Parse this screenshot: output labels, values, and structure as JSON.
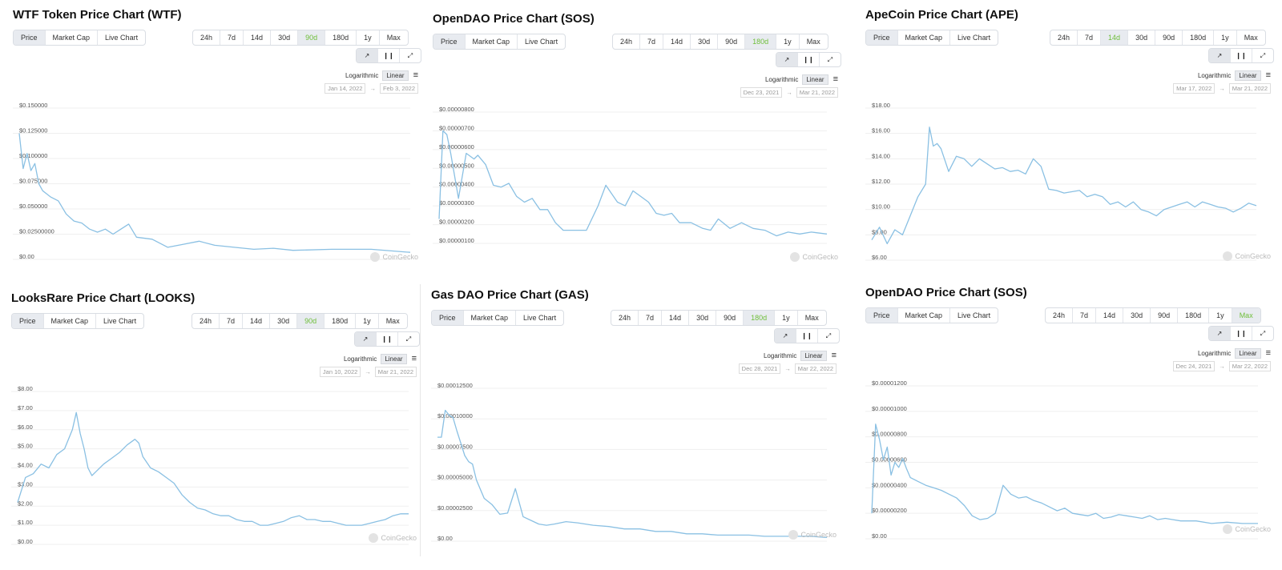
{
  "common": {
    "view_tabs": [
      "Price",
      "Market Cap",
      "Live Chart"
    ],
    "ranges": [
      "24h",
      "7d",
      "14d",
      "30d",
      "90d",
      "180d",
      "1y",
      "Max"
    ],
    "chart_icons": [
      "line-chart-icon",
      "candlestick-icon",
      "fullscreen-icon"
    ],
    "scale_log": "Logarithmic",
    "scale_linear": "Linear",
    "date_arrow": "→",
    "watermark": "CoinGecko",
    "line_color": "#8ac0e3",
    "active_range_color": "#6fbe3a"
  },
  "panels": [
    {
      "title": "WTF Token Price Chart (WTF)",
      "active_range": "90d",
      "date_from": "Jan 14, 2022",
      "date_to": "Feb 3, 2022",
      "y_ticks": [
        "$0.150000",
        "$0.125000",
        "$0.100000",
        "$0.075000",
        "$0.050000",
        "$0.02500000",
        "$0.00"
      ]
    },
    {
      "title": "OpenDAO Price Chart (SOS)",
      "active_range": "180d",
      "date_from": "Dec 23, 2021",
      "date_to": "Mar 21, 2022",
      "y_ticks": [
        "$0.00000800",
        "$0.00000700",
        "$0.00000600",
        "$0.00000500",
        "$0.00000400",
        "$0.00000300",
        "$0.00000200",
        "$0.00000100"
      ]
    },
    {
      "title": "ApeCoin Price Chart (APE)",
      "active_range": "14d",
      "date_from": "Mar 17, 2022",
      "date_to": "Mar 21, 2022",
      "y_ticks": [
        "$18.00",
        "$16.00",
        "$14.00",
        "$12.00",
        "$10.00",
        "$8.00",
        "$6.00"
      ]
    },
    {
      "title": "LooksRare Price Chart (LOOKS)",
      "active_range": "90d",
      "date_from": "Jan 10, 2022",
      "date_to": "Mar 21, 2022",
      "y_ticks": [
        "$8.00",
        "$7.00",
        "$6.00",
        "$5.00",
        "$4.00",
        "$3.00",
        "$2.00",
        "$1.00",
        "$0.00"
      ]
    },
    {
      "title": "Gas DAO Price Chart (GAS)",
      "active_range": "180d",
      "date_from": "Dec 28, 2021",
      "date_to": "Mar 22, 2022",
      "y_ticks": [
        "$0.00012500",
        "$0.00010000",
        "$0.00007500",
        "$0.00005000",
        "$0.00002500",
        "$0.00"
      ]
    },
    {
      "title": "OpenDAO Price Chart (SOS)",
      "active_range": "Max",
      "date_from": "Dec 24, 2021",
      "date_to": "Mar 22, 2022",
      "y_ticks": [
        "$0.00001200",
        "$0.00001000",
        "$0.00000800",
        "$0.00000600",
        "$0.00000400",
        "$0.00000200",
        "$0.00"
      ]
    }
  ],
  "chart_data": [
    {
      "type": "line",
      "title": "WTF Token Price Chart (WTF)",
      "ylim": [
        0,
        0.15
      ],
      "x_range": [
        "Jan 14, 2022",
        "Feb 3, 2022"
      ],
      "x": [
        0,
        1,
        2,
        3,
        4,
        5,
        6,
        7,
        8,
        9,
        10,
        12,
        14,
        16,
        18,
        20,
        22,
        24,
        26,
        28,
        30,
        34,
        38,
        42,
        46,
        50,
        55,
        60,
        65,
        70,
        80,
        90,
        100
      ],
      "series": [
        {
          "values": [
            0.125,
            0.09,
            0.105,
            0.088,
            0.095,
            0.075,
            0.068,
            0.065,
            0.062,
            0.06,
            0.058,
            0.045,
            0.038,
            0.036,
            0.03,
            0.027,
            0.03,
            0.025,
            0.03,
            0.035,
            0.022,
            0.02,
            0.012,
            0.015,
            0.018,
            0.014,
            0.012,
            0.01,
            0.011,
            0.009,
            0.01,
            0.01,
            0.007
          ]
        }
      ]
    },
    {
      "type": "line",
      "title": "OpenDAO Price Chart (SOS)",
      "ylim": [
        1e-06,
        8e-06
      ],
      "x_range": [
        "Dec 23, 2021",
        "Mar 21, 2022"
      ],
      "x": [
        0,
        1,
        2,
        3,
        5,
        7,
        9,
        10,
        12,
        14,
        16,
        18,
        20,
        22,
        24,
        26,
        28,
        30,
        32,
        35,
        38,
        41,
        43,
        46,
        48,
        50,
        52,
        54,
        56,
        58,
        60,
        62,
        65,
        68,
        70,
        72,
        75,
        78,
        81,
        84,
        87,
        90,
        93,
        96,
        100
      ],
      "series": [
        {
          "values": [
            2.3e-06,
            7e-06,
            6.8e-06,
            5.8e-06,
            3.4e-06,
            5.8e-06,
            5.5e-06,
            5.7e-06,
            5.2e-06,
            4.1e-06,
            4e-06,
            4.2e-06,
            3.5e-06,
            3.2e-06,
            3.4e-06,
            2.8e-06,
            2.8e-06,
            2.1e-06,
            1.7e-06,
            1.7e-06,
            1.7e-06,
            3e-06,
            4.1e-06,
            3.2e-06,
            3e-06,
            3.8e-06,
            3.5e-06,
            3.2e-06,
            2.6e-06,
            2.5e-06,
            2.6e-06,
            2.1e-06,
            2.1e-06,
            1.8e-06,
            1.7e-06,
            2.3e-06,
            1.8e-06,
            2.1e-06,
            1.8e-06,
            1.7e-06,
            1.4e-06,
            1.6e-06,
            1.5e-06,
            1.6e-06,
            1.5e-06
          ]
        }
      ]
    },
    {
      "type": "line",
      "title": "ApeCoin Price Chart (APE)",
      "ylim": [
        6,
        18
      ],
      "x_range": [
        "Mar 17, 2022",
        "Mar 21, 2022"
      ],
      "x": [
        0,
        2,
        4,
        6,
        8,
        10,
        12,
        14,
        15,
        16,
        17,
        18,
        20,
        22,
        24,
        26,
        28,
        30,
        32,
        34,
        36,
        38,
        40,
        42,
        44,
        46,
        48,
        50,
        52,
        54,
        56,
        58,
        60,
        62,
        64,
        66,
        68,
        70,
        72,
        74,
        76,
        78,
        80,
        82,
        84,
        86,
        88,
        90,
        92,
        94,
        96,
        98,
        100
      ],
      "series": [
        {
          "values": [
            7.6,
            8.6,
            7.3,
            8.4,
            8.0,
            9.5,
            11.0,
            12.0,
            16.5,
            15.0,
            15.2,
            14.8,
            13.0,
            14.2,
            14.0,
            13.4,
            14.0,
            13.6,
            13.2,
            13.3,
            13.0,
            13.1,
            12.8,
            14.0,
            13.4,
            11.6,
            11.5,
            11.3,
            11.4,
            11.5,
            11.0,
            11.2,
            11.0,
            10.4,
            10.6,
            10.2,
            10.6,
            10.0,
            9.8,
            9.5,
            10.0,
            10.2,
            10.4,
            10.6,
            10.2,
            10.6,
            10.4,
            10.2,
            10.1,
            9.8,
            10.1,
            10.5,
            10.3
          ]
        }
      ]
    },
    {
      "type": "line",
      "title": "LooksRare Price Chart (LOOKS)",
      "ylim": [
        0,
        8
      ],
      "x_range": [
        "Jan 10, 2022",
        "Mar 21, 2022"
      ],
      "x": [
        0,
        2,
        4,
        6,
        8,
        10,
        12,
        14,
        15,
        16,
        17,
        18,
        19,
        20,
        22,
        24,
        26,
        28,
        30,
        31,
        32,
        34,
        36,
        38,
        40,
        42,
        44,
        46,
        48,
        50,
        52,
        54,
        56,
        58,
        60,
        62,
        64,
        66,
        68,
        70,
        72,
        74,
        76,
        78,
        80,
        82,
        84,
        86,
        88,
        90,
        92,
        94,
        96,
        98,
        100
      ],
      "series": [
        {
          "values": [
            2.2,
            3.5,
            3.7,
            4.2,
            4.0,
            4.7,
            5.0,
            6.0,
            6.9,
            5.8,
            5.0,
            4.0,
            3.6,
            3.8,
            4.2,
            4.5,
            4.8,
            5.2,
            5.5,
            5.3,
            4.6,
            4.0,
            3.8,
            3.5,
            3.2,
            2.6,
            2.2,
            1.9,
            1.8,
            1.6,
            1.5,
            1.5,
            1.3,
            1.2,
            1.2,
            1.0,
            1.0,
            1.1,
            1.2,
            1.4,
            1.5,
            1.3,
            1.3,
            1.2,
            1.2,
            1.1,
            1.0,
            1.0,
            1.0,
            1.1,
            1.2,
            1.3,
            1.5,
            1.6,
            1.6
          ]
        }
      ]
    },
    {
      "type": "line",
      "title": "Gas DAO Price Chart (GAS)",
      "ylim": [
        0,
        0.000125
      ],
      "x_range": [
        "Dec 28, 2021",
        "Mar 22, 2022"
      ],
      "x": [
        0,
        1,
        2,
        3,
        4,
        5,
        6,
        7,
        8,
        9,
        10,
        12,
        14,
        16,
        18,
        20,
        22,
        24,
        26,
        28,
        30,
        33,
        36,
        40,
        44,
        48,
        52,
        56,
        60,
        64,
        68,
        72,
        76,
        80,
        84,
        88,
        92,
        96,
        100
      ],
      "series": [
        {
          "values": [
            8.5e-05,
            8.5e-05,
            0.000107,
            0.000103,
            0.000101,
            9e-05,
            8e-05,
            7e-05,
            6.5e-05,
            6.3e-05,
            5e-05,
            3.5e-05,
            3e-05,
            2.2e-05,
            2.3e-05,
            4.3e-05,
            2e-05,
            1.7e-05,
            1.4e-05,
            1.3e-05,
            1.4e-05,
            1.6e-05,
            1.5e-05,
            1.3e-05,
            1.2e-05,
            1e-05,
            1e-05,
            8e-06,
            8e-06,
            6e-06,
            6e-06,
            5e-06,
            5e-06,
            5e-06,
            4e-06,
            4e-06,
            4e-06,
            4e-06,
            3e-06
          ]
        }
      ]
    },
    {
      "type": "line",
      "title": "OpenDAO Price Chart (SOS)",
      "ylim": [
        0,
        1.2e-05
      ],
      "x_range": [
        "Dec 24, 2021",
        "Mar 22, 2022"
      ],
      "x": [
        0,
        1,
        2,
        3,
        4,
        5,
        6,
        7,
        8,
        9,
        10,
        12,
        14,
        16,
        18,
        20,
        22,
        24,
        26,
        28,
        30,
        32,
        34,
        36,
        38,
        40,
        42,
        44,
        46,
        48,
        50,
        52,
        54,
        56,
        58,
        60,
        62,
        64,
        66,
        68,
        70,
        72,
        74,
        76,
        78,
        80,
        84,
        88,
        92,
        96,
        100
      ],
      "series": [
        {
          "values": [
            2e-06,
            9e-06,
            7.8e-06,
            6.2e-06,
            7.2e-06,
            5e-06,
            6e-06,
            5.6e-06,
            6.3e-06,
            5.5e-06,
            4.8e-06,
            4.5e-06,
            4.2e-06,
            4e-06,
            3.8e-06,
            3.5e-06,
            3.2e-06,
            2.6e-06,
            1.8e-06,
            1.5e-06,
            1.6e-06,
            2e-06,
            4.2e-06,
            3.5e-06,
            3.2e-06,
            3.3e-06,
            3e-06,
            2.8e-06,
            2.5e-06,
            2.2e-06,
            2.4e-06,
            2e-06,
            1.9e-06,
            1.8e-06,
            2e-06,
            1.6e-06,
            1.7e-06,
            1.9e-06,
            1.8e-06,
            1.7e-06,
            1.6e-06,
            1.8e-06,
            1.5e-06,
            1.6e-06,
            1.5e-06,
            1.4e-06,
            1.4e-06,
            1.2e-06,
            1.3e-06,
            1.2e-06,
            1.2e-06
          ]
        }
      ]
    }
  ]
}
